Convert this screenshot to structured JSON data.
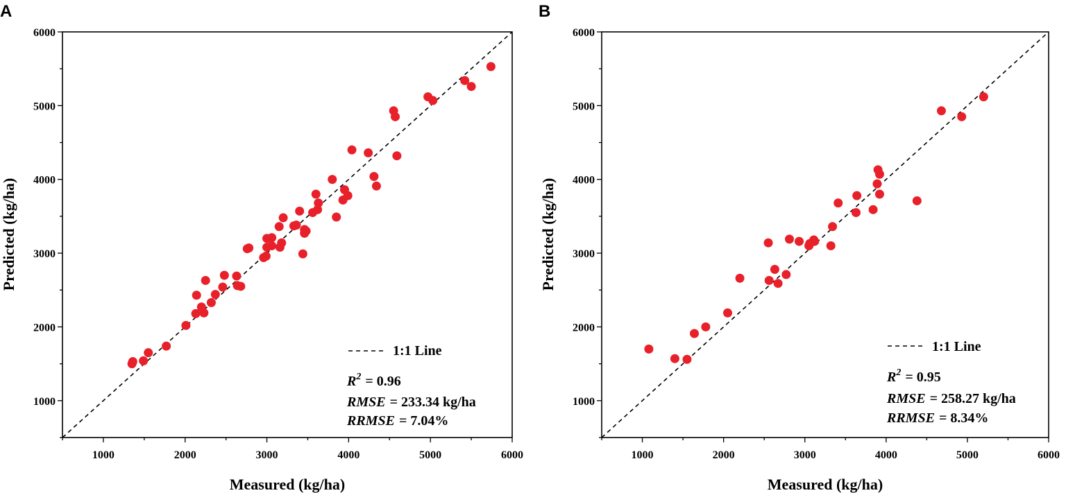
{
  "chart_data": [
    {
      "type": "scatter",
      "panel_label": "A",
      "xlabel": "Measured (kg/ha)",
      "ylabel": "Predicted (kg/ha)",
      "xlim": [
        500,
        6000
      ],
      "ylim": [
        500,
        6000
      ],
      "xticks": [
        "1000",
        "2000",
        "3000",
        "4000",
        "5000",
        "6000"
      ],
      "yticks": [
        "1000",
        "2000",
        "3000",
        "4000",
        "5000",
        "6000"
      ],
      "legend_label": "1:1 Line",
      "stats": {
        "r2_label": "R",
        "r2_sup": "2",
        "r2_value": "= 0.96",
        "rmse_label": "RMSE",
        "rmse_value": "= 233.34 kg/ha",
        "rrmse_label": "RRMSE",
        "rrmse_value": "= 7.04%"
      },
      "point_color": "#e8202a",
      "points": [
        [
          1350,
          1500
        ],
        [
          1360,
          1530
        ],
        [
          1490,
          1540
        ],
        [
          1550,
          1650
        ],
        [
          1770,
          1740
        ],
        [
          2010,
          2020
        ],
        [
          2130,
          2180
        ],
        [
          2140,
          2430
        ],
        [
          2200,
          2270
        ],
        [
          2230,
          2190
        ],
        [
          2250,
          2630
        ],
        [
          2320,
          2330
        ],
        [
          2370,
          2440
        ],
        [
          2460,
          2540
        ],
        [
          2480,
          2700
        ],
        [
          2630,
          2690
        ],
        [
          2640,
          2560
        ],
        [
          2680,
          2550
        ],
        [
          2760,
          3060
        ],
        [
          2780,
          3070
        ],
        [
          2960,
          2940
        ],
        [
          2990,
          2960
        ],
        [
          3000,
          3200
        ],
        [
          3000,
          3080
        ],
        [
          3060,
          3210
        ],
        [
          3060,
          3100
        ],
        [
          3150,
          3360
        ],
        [
          3160,
          3080
        ],
        [
          3180,
          3140
        ],
        [
          3200,
          3480
        ],
        [
          3330,
          3370
        ],
        [
          3360,
          3380
        ],
        [
          3400,
          3570
        ],
        [
          3440,
          2990
        ],
        [
          3460,
          3320
        ],
        [
          3460,
          3270
        ],
        [
          3480,
          3300
        ],
        [
          3560,
          3550
        ],
        [
          3600,
          3800
        ],
        [
          3620,
          3590
        ],
        [
          3630,
          3680
        ],
        [
          3800,
          4000
        ],
        [
          3850,
          3490
        ],
        [
          3930,
          3720
        ],
        [
          3950,
          3860
        ],
        [
          3990,
          3780
        ],
        [
          4040,
          4400
        ],
        [
          4240,
          4360
        ],
        [
          4310,
          4040
        ],
        [
          4340,
          3910
        ],
        [
          4550,
          4930
        ],
        [
          4570,
          4850
        ],
        [
          4590,
          4320
        ],
        [
          4970,
          5120
        ],
        [
          5030,
          5070
        ],
        [
          5420,
          5340
        ],
        [
          5500,
          5260
        ],
        [
          5740,
          5530
        ]
      ]
    },
    {
      "type": "scatter",
      "panel_label": "B",
      "xlabel": "Measured (kg/ha)",
      "ylabel": "Predicted (kg/ha)",
      "xlim": [
        500,
        6000
      ],
      "ylim": [
        500,
        6000
      ],
      "xticks": [
        "1000",
        "2000",
        "3000",
        "4000",
        "5000",
        "6000"
      ],
      "yticks": [
        "1000",
        "2000",
        "3000",
        "4000",
        "5000",
        "6000"
      ],
      "legend_label": "1:1 Line",
      "stats": {
        "r2_label": "R",
        "r2_sup": "2",
        "r2_value": "= 0.95",
        "rmse_label": "RMSE",
        "rmse_value": "= 258.27 kg/ha",
        "rrmse_label": "RRMSE",
        "rrmse_value": "= 8.34%"
      },
      "point_color": "#e8202a",
      "points": [
        [
          1080,
          1700
        ],
        [
          1400,
          1570
        ],
        [
          1550,
          1560
        ],
        [
          1640,
          1910
        ],
        [
          1780,
          2000
        ],
        [
          2050,
          2190
        ],
        [
          2200,
          2660
        ],
        [
          2550,
          3140
        ],
        [
          2560,
          2630
        ],
        [
          2630,
          2780
        ],
        [
          2670,
          2590
        ],
        [
          2770,
          2710
        ],
        [
          2810,
          3190
        ],
        [
          2930,
          3160
        ],
        [
          3050,
          3100
        ],
        [
          3060,
          3130
        ],
        [
          3110,
          3180
        ],
        [
          3120,
          3160
        ],
        [
          3320,
          3100
        ],
        [
          3340,
          3360
        ],
        [
          3410,
          3680
        ],
        [
          3630,
          3550
        ],
        [
          3640,
          3780
        ],
        [
          3840,
          3590
        ],
        [
          3890,
          3940
        ],
        [
          3900,
          4130
        ],
        [
          3920,
          4070
        ],
        [
          3920,
          3800
        ],
        [
          4380,
          3710
        ],
        [
          4680,
          4930
        ],
        [
          4930,
          4850
        ],
        [
          5200,
          5120
        ]
      ]
    }
  ]
}
